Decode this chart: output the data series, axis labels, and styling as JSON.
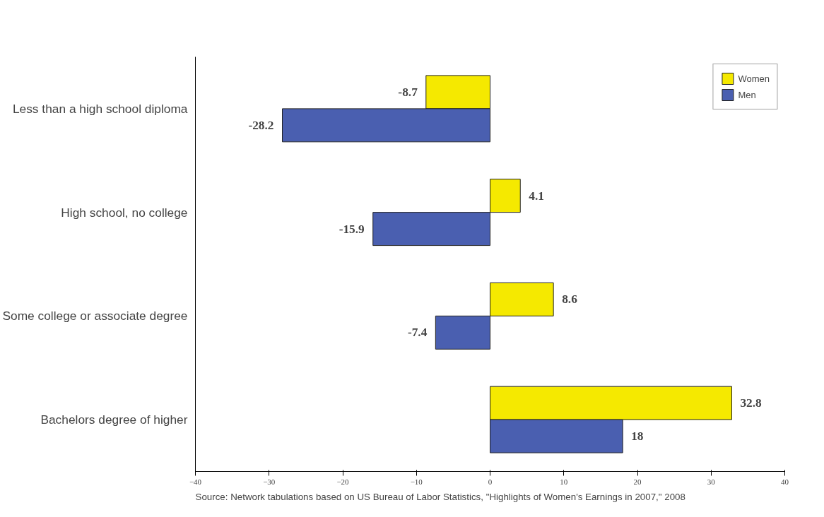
{
  "chart_data": {
    "type": "bar",
    "orientation": "horizontal",
    "categories": [
      "Less than a high school diploma",
      "High school, no college",
      "Some college or associate degree",
      "Bachelors degree of higher"
    ],
    "series": [
      {
        "name": "Women",
        "color": "#f5e900",
        "values": [
          -8.7,
          4.1,
          8.6,
          32.8
        ]
      },
      {
        "name": "Men",
        "color": "#4a5fb0",
        "values": [
          -28.2,
          -15.9,
          -7.4,
          18
        ]
      }
    ],
    "xlim": [
      -40,
      40
    ],
    "xticks": [
      -40,
      -30,
      -20,
      -10,
      0,
      10,
      20,
      30,
      40
    ],
    "data_labels": true,
    "grid": false,
    "legend": "top right",
    "annotations": [
      "Source: Network tabulations based on US Bureau of Labor Statistics, \"Highlights of Women's Earnings in 2007,\" 2008"
    ]
  }
}
